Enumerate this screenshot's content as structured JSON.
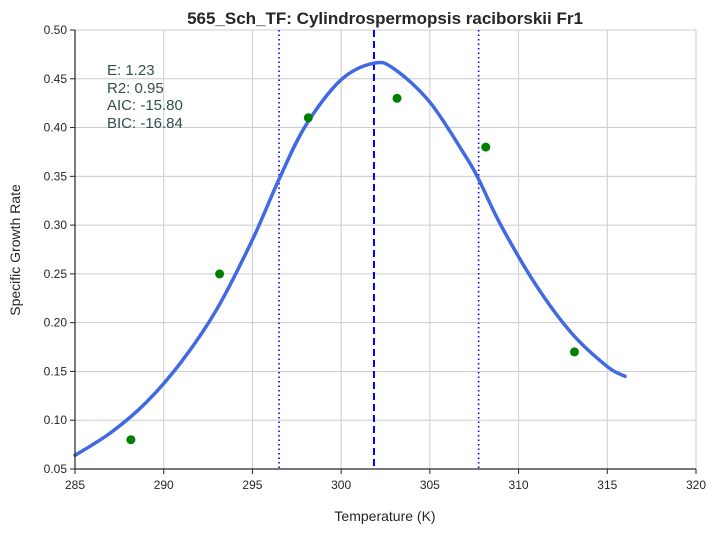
{
  "chart_data": {
    "type": "scatter",
    "title": "565_Sch_TF: Cylindrospermopsis raciborskii Fr1",
    "xlabel": "Temperature (K)",
    "ylabel": "Specific Growth Rate",
    "xlim": [
      285,
      320
    ],
    "ylim": [
      0.05,
      0.5
    ],
    "xticks": [
      "285",
      "290",
      "295",
      "300",
      "305",
      "310",
      "315",
      "320"
    ],
    "yticks": [
      "0.05",
      "0.10",
      "0.15",
      "0.20",
      "0.25",
      "0.30",
      "0.35",
      "0.40",
      "0.45",
      "0.50"
    ],
    "grid": true,
    "points": {
      "color": "#008000",
      "x": [
        288.15,
        293.15,
        298.15,
        303.15,
        308.15,
        313.15
      ],
      "y": [
        0.08,
        0.25,
        0.41,
        0.43,
        0.38,
        0.17
      ]
    },
    "fit_curve": {
      "color": "#4169e1",
      "x": [
        285.0,
        287.0,
        289.0,
        291.0,
        293.0,
        295.0,
        296.5,
        298.0,
        300.0,
        301.85,
        303.0,
        305.0,
        307.0,
        307.75,
        309.0,
        311.0,
        313.0,
        315.0,
        316.0
      ],
      "y": [
        0.064,
        0.087,
        0.118,
        0.16,
        0.214,
        0.285,
        0.347,
        0.402,
        0.449,
        0.466,
        0.46,
        0.426,
        0.371,
        0.347,
        0.3,
        0.238,
        0.189,
        0.155,
        0.145
      ]
    },
    "vlines": [
      {
        "x": 301.85,
        "style": "dashed",
        "color": "#0000ff"
      },
      {
        "x": 296.5,
        "style": "dotted",
        "color": "#0000ff"
      },
      {
        "x": 307.75,
        "style": "dotted",
        "color": "#0000ff"
      }
    ],
    "annotations": [
      "E:  1.23",
      "R2:  0.95",
      "AIC: -15.80",
      "BIC: -16.84"
    ]
  }
}
